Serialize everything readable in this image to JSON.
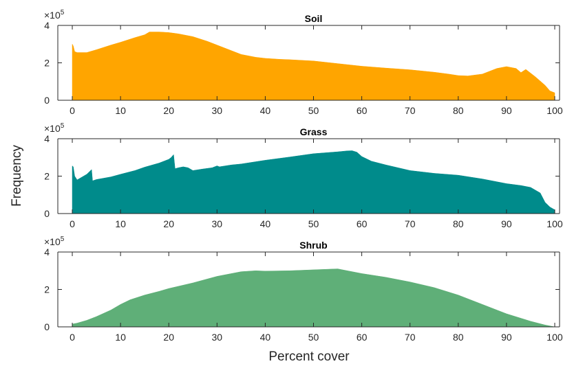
{
  "figure": {
    "ylabel": "Frequency",
    "xlabel": "Percent cover",
    "exponent_text": "×10",
    "exponent_power": "5"
  },
  "chart_data": [
    {
      "type": "area",
      "title": "Soil",
      "color": "#FFA500",
      "xlim": [
        -3,
        101
      ],
      "ylim": [
        0,
        400000
      ],
      "xticks": [
        "0",
        "10",
        "20",
        "30",
        "40",
        "50",
        "60",
        "70",
        "80",
        "90",
        "100"
      ],
      "yticks": [
        "0",
        "2",
        "4"
      ],
      "x": [
        0,
        0.2,
        0.5,
        1,
        3,
        5,
        8,
        10,
        13,
        15,
        16,
        18,
        20,
        22,
        25,
        28,
        30,
        33,
        35,
        38,
        40,
        43,
        45,
        50,
        55,
        60,
        65,
        70,
        75,
        78,
        80,
        82,
        85,
        88,
        90,
        92,
        93,
        94,
        96,
        98,
        99,
        100
      ],
      "y": [
        300000,
        290000,
        260000,
        255000,
        255000,
        270000,
        295000,
        310000,
        335000,
        350000,
        365000,
        365000,
        362000,
        355000,
        340000,
        315000,
        295000,
        265000,
        245000,
        230000,
        224000,
        219000,
        217000,
        210000,
        196000,
        182000,
        172000,
        163000,
        150000,
        140000,
        132000,
        130000,
        140000,
        170000,
        180000,
        170000,
        148000,
        165000,
        125000,
        80000,
        50000,
        40000
      ]
    },
    {
      "type": "area",
      "title": "Grass",
      "color": "#008B8B",
      "xlim": [
        -3,
        101
      ],
      "ylim": [
        0,
        400000
      ],
      "xticks": [
        "0",
        "10",
        "20",
        "30",
        "40",
        "50",
        "60",
        "70",
        "80",
        "90",
        "100"
      ],
      "yticks": [
        "0",
        "2",
        "4"
      ],
      "x": [
        0,
        0.2,
        0.5,
        1,
        2,
        3,
        4,
        4.2,
        5,
        8,
        10,
        13,
        15,
        18,
        20,
        20.5,
        21,
        21.3,
        22,
        23,
        24,
        25,
        27,
        29,
        30,
        30.5,
        33,
        35,
        40,
        45,
        50,
        55,
        57,
        58,
        59,
        60,
        62,
        65,
        70,
        75,
        80,
        85,
        88,
        90,
        93,
        95,
        97,
        98,
        99,
        100
      ],
      "y": [
        255000,
        250000,
        200000,
        180000,
        195000,
        210000,
        235000,
        175000,
        182000,
        196000,
        210000,
        230000,
        248000,
        270000,
        290000,
        300000,
        315000,
        240000,
        245000,
        250000,
        245000,
        230000,
        238000,
        245000,
        255000,
        250000,
        260000,
        265000,
        285000,
        302000,
        320000,
        330000,
        335000,
        336000,
        328000,
        305000,
        280000,
        260000,
        230000,
        215000,
        205000,
        185000,
        170000,
        160000,
        150000,
        140000,
        110000,
        60000,
        35000,
        20000
      ]
    },
    {
      "type": "area",
      "title": "Shrub",
      "color": "#5FAF78",
      "xlim": [
        -3,
        101
      ],
      "ylim": [
        0,
        400000
      ],
      "xticks": [
        "0",
        "10",
        "20",
        "30",
        "40",
        "50",
        "60",
        "70",
        "80",
        "90",
        "100"
      ],
      "yticks": [
        "0",
        "2",
        "4"
      ],
      "x": [
        0,
        1,
        3,
        5,
        8,
        10,
        12,
        15,
        18,
        20,
        25,
        30,
        35,
        38,
        40,
        45,
        50,
        55,
        58,
        60,
        65,
        70,
        75,
        80,
        85,
        90,
        95,
        98,
        100
      ],
      "y": [
        15000,
        20000,
        35000,
        55000,
        90000,
        120000,
        145000,
        170000,
        190000,
        205000,
        235000,
        270000,
        295000,
        300000,
        298000,
        300000,
        305000,
        310000,
        295000,
        285000,
        265000,
        240000,
        210000,
        170000,
        120000,
        70000,
        30000,
        10000,
        0
      ]
    }
  ]
}
